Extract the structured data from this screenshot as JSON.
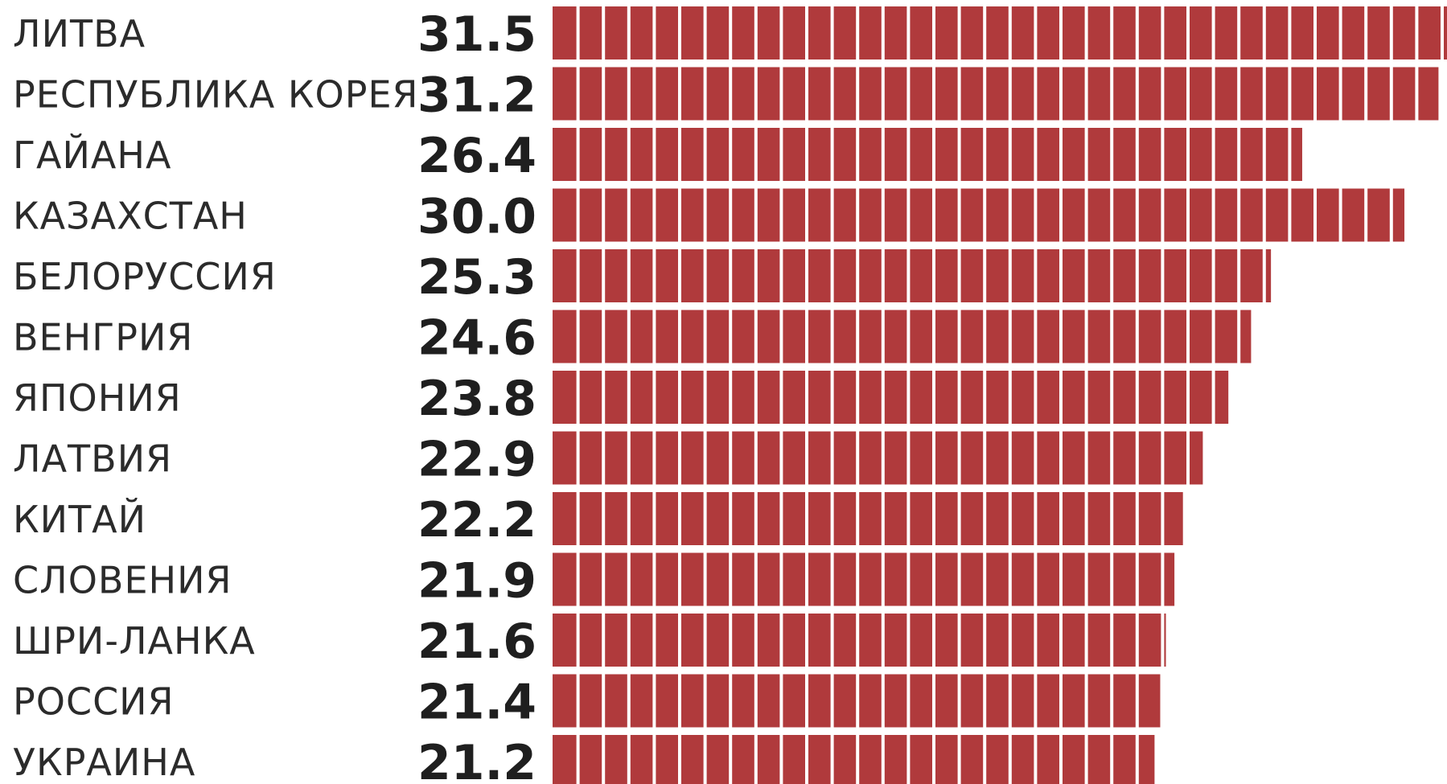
{
  "chart_data": {
    "type": "bar",
    "orientation": "horizontal",
    "title": "",
    "xlabel": "",
    "ylabel": "",
    "bar_color": "#b03a3c",
    "segment_divider_color": "#ffffff",
    "categories": [
      "ЛИТВА",
      "РЕСПУБЛИКА КОРЕЯ",
      "ГАЙАНА",
      "КАЗАХСТАН",
      "БЕЛОРУССИЯ",
      "ВЕНГРИЯ",
      "ЯПОНИЯ",
      "ЛАТВИЯ",
      "КИТАЙ",
      "СЛОВЕНИЯ",
      "ШРИ-ЛАНКА",
      "РОССИЯ",
      "УКРАИНА"
    ],
    "labels": [
      "31.5",
      "31.2",
      "26.4",
      "30.0",
      "25.3",
      "24.6",
      "23.8",
      "22.9",
      "22.2",
      "21.9",
      "21.6",
      "21.4",
      "21.2"
    ],
    "values": [
      31.5,
      31.2,
      26.4,
      30.0,
      25.3,
      24.6,
      23.8,
      22.9,
      22.2,
      21.9,
      21.6,
      21.4,
      21.2
    ],
    "xlim": [
      0,
      31.5
    ]
  }
}
